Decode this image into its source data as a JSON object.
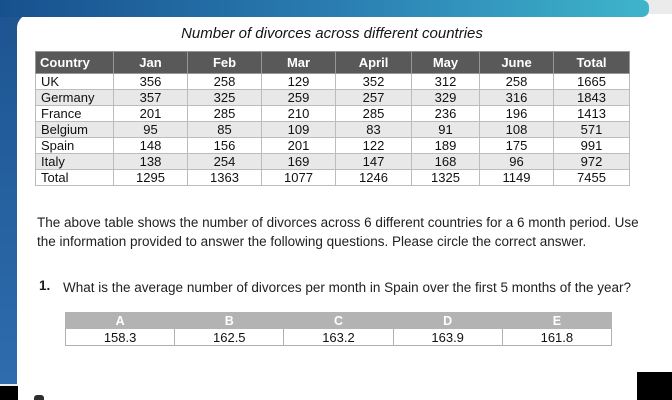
{
  "title": "Number of divorces across different countries",
  "table": {
    "headers": [
      "Country",
      "Jan",
      "Feb",
      "Mar",
      "April",
      "May",
      "June",
      "Total"
    ],
    "rows": [
      [
        "UK",
        "356",
        "258",
        "129",
        "352",
        "312",
        "258",
        "1665"
      ],
      [
        "Germany",
        "357",
        "325",
        "259",
        "257",
        "329",
        "316",
        "1843"
      ],
      [
        "France",
        "201",
        "285",
        "210",
        "285",
        "236",
        "196",
        "1413"
      ],
      [
        "Belgium",
        "95",
        "85",
        "109",
        "83",
        "91",
        "108",
        "571"
      ],
      [
        "Spain",
        "148",
        "156",
        "201",
        "122",
        "189",
        "175",
        "991"
      ],
      [
        "Italy",
        "138",
        "254",
        "169",
        "147",
        "168",
        "96",
        "972"
      ],
      [
        "Total",
        "1295",
        "1363",
        "1077",
        "1246",
        "1325",
        "1149",
        "7455"
      ]
    ]
  },
  "intro": "The above table shows the number of divorces across 6 different countries for a 6 month period. Use the information provided to answer the following questions. Please circle the correct answer.",
  "question": {
    "number": "1.",
    "text": "What is the average number of divorces per month in Spain over the first 5 months of the year?"
  },
  "answers": {
    "headers": [
      "A",
      "B",
      "C",
      "D",
      "E"
    ],
    "values": [
      "158.3",
      "162.5",
      "163.2",
      "163.9",
      "161.8"
    ]
  },
  "colors": {
    "bar_gradient_start": "#17508e",
    "bar_gradient_end": "#3eb5cb",
    "left_strip_blue": "#2b65a3",
    "table_header_gray": "#595959",
    "row_alt_gray": "#e8e8e8",
    "answer_header_gray": "#b3b3b3",
    "corner_black": "#000000"
  }
}
